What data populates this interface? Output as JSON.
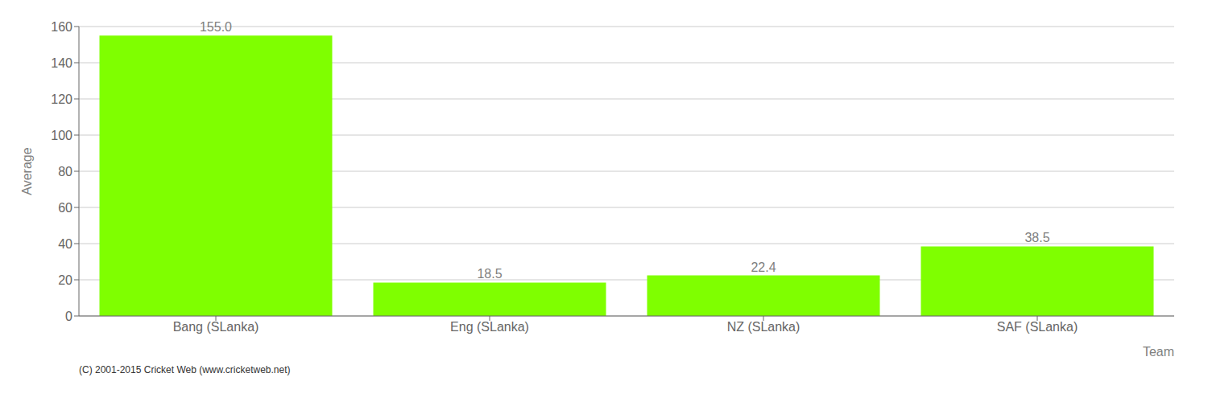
{
  "chart_data": {
    "type": "bar",
    "categories": [
      "Bang (SLanka)",
      "Eng (SLanka)",
      "NZ (SLanka)",
      "SAF (SLanka)"
    ],
    "values": [
      155.0,
      18.5,
      22.4,
      38.5
    ],
    "value_labels": [
      "155.0",
      "18.5",
      "22.4",
      "38.5"
    ],
    "data_labels": true,
    "color": "#7fff00",
    "xlabel": "Team",
    "ylabel": "Average",
    "ylim": [
      0,
      160
    ],
    "yticks": [
      0,
      20,
      40,
      60,
      80,
      100,
      120,
      140,
      160
    ],
    "grid": true,
    "annotations": [
      "(C) 2001-2015 Cricket Web (www.cricketweb.net)"
    ]
  }
}
